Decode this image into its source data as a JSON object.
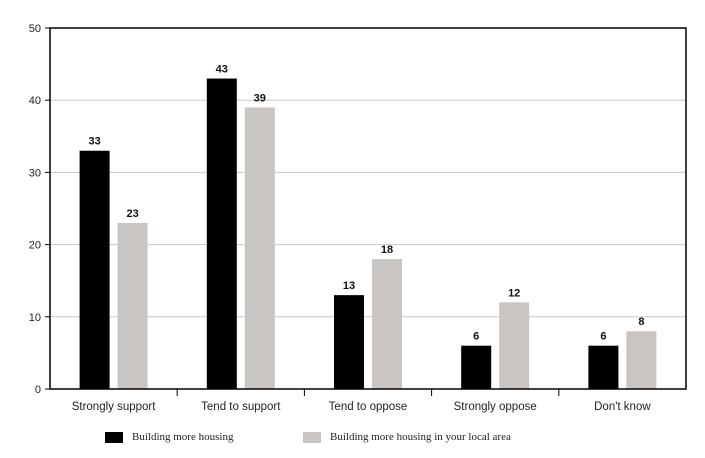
{
  "chart_data": {
    "type": "bar",
    "categories": [
      "Strongly support",
      "Tend to support",
      "Tend to oppose",
      "Strongly oppose",
      "Don't know"
    ],
    "series": [
      {
        "name": "Building more housing",
        "values": [
          33,
          43,
          13,
          6,
          6
        ],
        "color": "#000000"
      },
      {
        "name": "Building more housing in your local area",
        "values": [
          23,
          39,
          18,
          12,
          8
        ],
        "color": "#c9c5c2"
      }
    ],
    "ylim": [
      0,
      50
    ],
    "yticks": [
      "0",
      "10",
      "20",
      "30",
      "40",
      "50"
    ],
    "grid": true,
    "legend_position": "bottom"
  }
}
